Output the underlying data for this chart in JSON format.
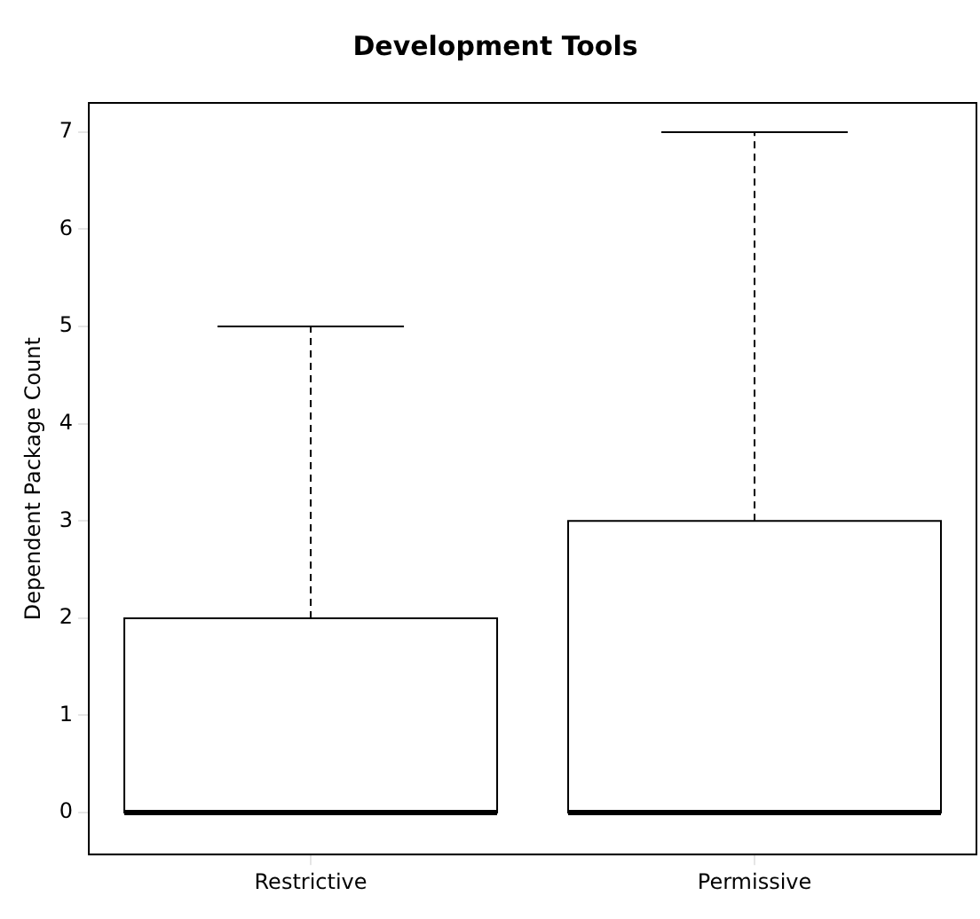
{
  "chart_data": {
    "type": "box",
    "title": "Development Tools",
    "ylabel": "Dependent Package Count",
    "categories": [
      "Restrictive",
      "Permissive"
    ],
    "boxes": [
      {
        "low": 0,
        "q1": 0,
        "median": 0,
        "q3": 2,
        "high": 5
      },
      {
        "low": 0,
        "q1": 0,
        "median": 0,
        "q3": 3,
        "high": 7
      }
    ],
    "ylim": [
      -0.43,
      7.3
    ],
    "yticks": [
      0,
      1,
      2,
      3,
      4,
      5,
      6,
      7
    ]
  }
}
